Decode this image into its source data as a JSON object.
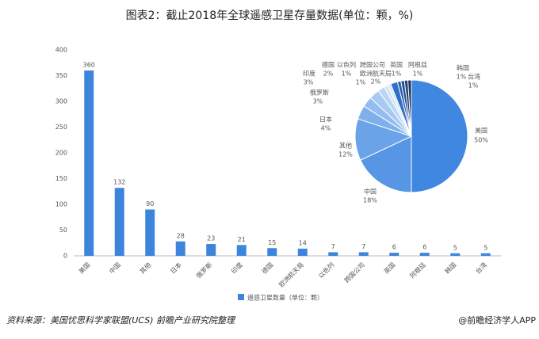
{
  "chart_data": [
    {
      "type": "bar",
      "title": "图表2：截止2018年全球遥感卫星存量数据(单位：颗，%)",
      "categories": [
        "美国",
        "中国",
        "其他",
        "日本",
        "俄罗斯",
        "印度",
        "德国",
        "欧洲航天局",
        "以色列",
        "跨国公司",
        "英国",
        "阿根廷",
        "韩国",
        "台湾"
      ],
      "series": [
        {
          "name": "遥感卫星数量（单位：颗）",
          "color": "#3d85dc",
          "values": [
            360,
            132,
            90,
            28,
            23,
            21,
            15,
            14,
            7,
            7,
            6,
            6,
            5,
            5
          ]
        }
      ],
      "ylim": [
        0,
        400
      ],
      "yticks": [
        0,
        50,
        100,
        150,
        200,
        250,
        300,
        350,
        400
      ],
      "grid": false,
      "legend": "bottom"
    },
    {
      "type": "pie",
      "categories": [
        "美国",
        "中国",
        "其他",
        "日本",
        "俄罗斯",
        "印度",
        "德国",
        "以色列",
        "跨国公司",
        "欧洲航天局",
        "英国",
        "阿根廷",
        "韩国",
        "台湾"
      ],
      "values": [
        50,
        18,
        12,
        4,
        3,
        3,
        2,
        1,
        1,
        2,
        1,
        1,
        1,
        1
      ],
      "value_labels": [
        "50%",
        "18%",
        "12%",
        "4%",
        "3%",
        "3%",
        "2%",
        "1%",
        "1%",
        "2%",
        "1%",
        "1%",
        "1%",
        "1%"
      ],
      "colors": [
        "#3f87e0",
        "#5696e4",
        "#6aa3e8",
        "#7eb0ec",
        "#93bdef",
        "#a7caf2",
        "#bbd6f5",
        "#cde1f8",
        "#dbe9f9",
        "#2f6fcb",
        "#2a60b0",
        "#244f92",
        "#1f4077",
        "#1a335e"
      ]
    }
  ],
  "footer": {
    "source": "资料来源：美国忧思科学家联盟(UCS) 前瞻产业研究院整理",
    "brand": "@前瞻经济学人APP"
  }
}
